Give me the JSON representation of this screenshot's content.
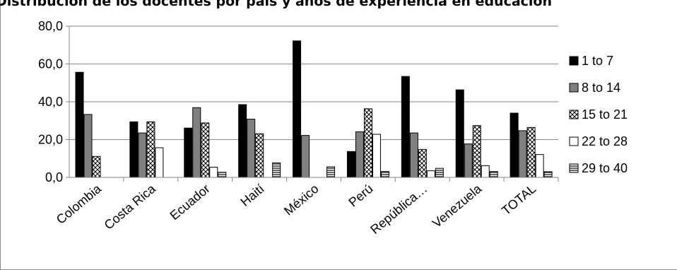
{
  "chart_data": {
    "type": "bar",
    "title": "Distribución de los docentes por país y años de experiencia en educación",
    "categories": [
      "Colombia",
      "Costa Rica",
      "Ecuador",
      "Haití",
      "México",
      "Perú",
      "República…",
      "Venezuela",
      "TOTAL"
    ],
    "series": [
      {
        "name": "1 to 7",
        "fill": "solid-black",
        "values": [
          55.6,
          29.4,
          26.1,
          38.5,
          72.2,
          13.7,
          53.4,
          46.3,
          34.0
        ]
      },
      {
        "name": "8 to 14",
        "fill": "solid-gray",
        "values": [
          33.3,
          23.5,
          36.9,
          30.8,
          22.2,
          24.1,
          23.5,
          17.7,
          24.7
        ]
      },
      {
        "name": "15 to 21",
        "fill": "crosshatch",
        "values": [
          11.1,
          29.4,
          28.8,
          23.1,
          0.0,
          36.3,
          14.8,
          27.4,
          26.4
        ]
      },
      {
        "name": "22 to 28",
        "fill": "white",
        "values": [
          0.0,
          15.7,
          5.4,
          0.0,
          0.0,
          22.8,
          3.5,
          6.2,
          12.1
        ]
      },
      {
        "name": "29 to 40",
        "fill": "horizontal-lines",
        "values": [
          0.0,
          0.0,
          2.7,
          7.7,
          5.6,
          3.1,
          4.8,
          3.1,
          3.0
        ]
      }
    ],
    "ylim": [
      0,
      80
    ],
    "yticks": [
      "0,0",
      "20,0",
      "40,0",
      "60,0",
      "80,0"
    ],
    "ytick_values": [
      0,
      20,
      40,
      60,
      80
    ],
    "grid": true,
    "legend_position": "right",
    "colors": {
      "black": "#000000",
      "gray": "#808080",
      "axis": "#868686",
      "grid": "#868686"
    }
  }
}
